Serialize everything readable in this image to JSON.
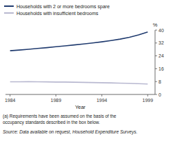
{
  "chart_data": {
    "type": "line",
    "x": [
      1984,
      1985,
      1986,
      1987,
      1988,
      1989,
      1990,
      1991,
      1992,
      1993,
      1994,
      1995,
      1996,
      1997,
      1998,
      1999
    ],
    "series": [
      {
        "name": "Households with 2 or more bedrooms spare",
        "color": "#1f3a6e",
        "values": [
          27.2,
          27.6,
          28.1,
          28.6,
          29.1,
          29.7,
          30.2,
          30.8,
          31.4,
          32.0,
          32.7,
          33.5,
          34.4,
          35.5,
          37.0,
          38.8
        ]
      },
      {
        "name": "Households with insufficient bedrooms",
        "color": "#b8b8d0",
        "values": [
          7.9,
          7.9,
          8.0,
          7.9,
          7.8,
          7.7,
          7.7,
          7.6,
          7.5,
          7.4,
          7.3,
          7.2,
          7.0,
          6.9,
          6.7,
          6.5
        ]
      }
    ],
    "x_label": "Year",
    "y_label": "%",
    "xlim": [
      1983.5,
      1999.8
    ],
    "xticks": [
      1984,
      1989,
      1994,
      1999
    ],
    "ylim": [
      0,
      40
    ],
    "yticks": [
      0,
      8,
      16,
      24,
      32,
      40
    ],
    "grid": false,
    "legend": "top",
    "annotations": [
      "(a) Requirements have been assumed on the basis of the",
      "occupancy standards described in the box below.",
      "Source: Data available on request, Household Expenditure Surveys."
    ]
  }
}
